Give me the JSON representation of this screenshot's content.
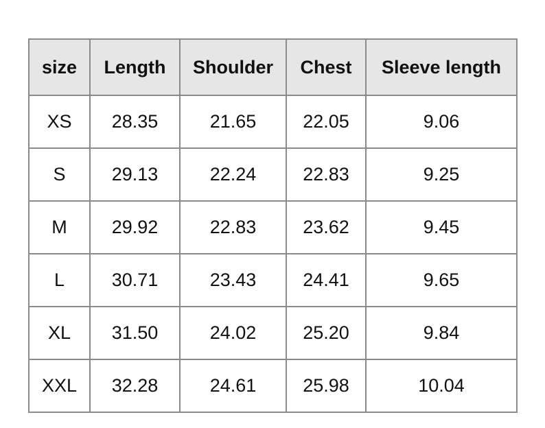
{
  "table": {
    "headers": [
      "size",
      "Length",
      "Shoulder",
      "Chest",
      "Sleeve length"
    ],
    "rows": [
      [
        "XS",
        "28.35",
        "21.65",
        "22.05",
        "9.06"
      ],
      [
        "S",
        "29.13",
        "22.24",
        "22.83",
        "9.25"
      ],
      [
        "M",
        "29.92",
        "22.83",
        "23.62",
        "9.45"
      ],
      [
        "L",
        "30.71",
        "23.43",
        "24.41",
        "9.65"
      ],
      [
        "XL",
        "31.50",
        "24.02",
        "25.20",
        "9.84"
      ],
      [
        "XXL",
        "32.28",
        "24.61",
        "25.98",
        "10.04"
      ]
    ]
  }
}
